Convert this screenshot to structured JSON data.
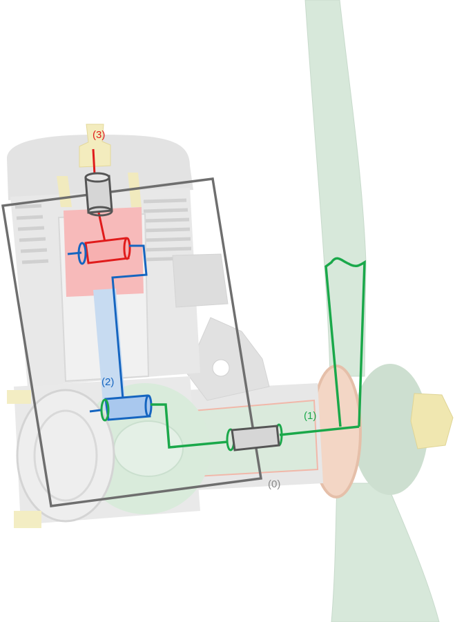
{
  "labels": {
    "frame": "(0)",
    "crank": "(1)",
    "rod": "(2)",
    "piston": "(3)"
  },
  "colors": {
    "frame": "#6e6e6e",
    "crank": "#1aa84a",
    "rod": "#1565c0",
    "piston": "#e01b1b",
    "propeller": "#cfe3d3",
    "engine": "#e3e3e3",
    "brass": "#efe6a8"
  }
}
